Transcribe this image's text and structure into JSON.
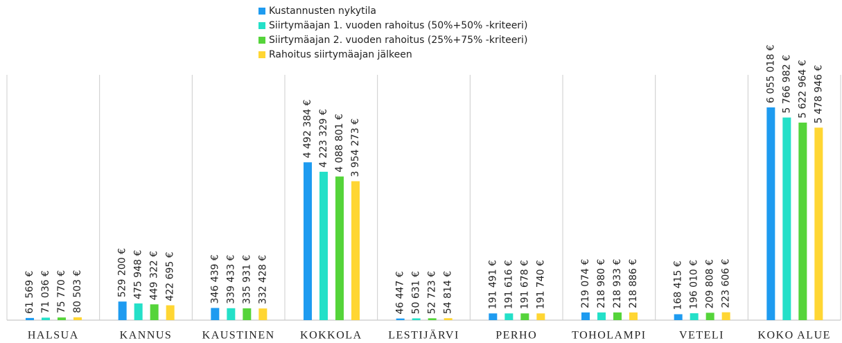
{
  "chart_data": {
    "type": "bar",
    "categories": [
      "HALSUA",
      "KANNUS",
      "KAUSTINEN",
      "KOKKOLA",
      "LESTIJÄRVI",
      "PERHO",
      "TOHOLAMPI",
      "VETELI",
      "KOKO ALUE"
    ],
    "series": [
      {
        "name": "Kustannusten nykytila",
        "color": "#1e9bf0",
        "values": [
          61569,
          529200,
          346439,
          4492384,
          46447,
          191491,
          219074,
          168415,
          6055018
        ],
        "value_labels": [
          "61 569 €",
          "529 200 €",
          "346 439 €",
          "4 492 384 €",
          "46 447 €",
          "191 491 €",
          "219 074 €",
          "168 415 €",
          "6 055 018 €"
        ]
      },
      {
        "name": "Siirtymäajan 1. vuoden rahoitus (50%+50% -kriteeri)",
        "color": "#24e0c8",
        "values": [
          71036,
          475948,
          339433,
          4223329,
          50631,
          191616,
          218980,
          196010,
          5766982
        ],
        "value_labels": [
          "71 036 €",
          "475 948 €",
          "339 433 €",
          "4 223 329 €",
          "50 631 €",
          "191 616 €",
          "218 980 €",
          "196 010 €",
          "5 766 982 €"
        ]
      },
      {
        "name": "Siirtymäajan 2. vuoden rahoitus (25%+75% -kriteeri)",
        "color": "#55d43a",
        "values": [
          75770,
          449322,
          335931,
          4088801,
          52723,
          191678,
          218933,
          209808,
          5622964
        ],
        "value_labels": [
          "75 770 €",
          "449 322 €",
          "335 931 €",
          "4 088 801 €",
          "52 723 €",
          "191 678 €",
          "218 933 €",
          "209 808 €",
          "5 622 964 €"
        ]
      },
      {
        "name": "Rahoitus siirtymäajan jälkeen",
        "color": "#ffd633",
        "values": [
          80503,
          422695,
          332428,
          3954273,
          54814,
          191740,
          218886,
          223606,
          5478946
        ],
        "value_labels": [
          "80 503 €",
          "422 695 €",
          "332 428 €",
          "3 954 273 €",
          "54 814 €",
          "191 740 €",
          "218 886 €",
          "223 606 €",
          "5 478 946 €"
        ]
      }
    ]
  }
}
